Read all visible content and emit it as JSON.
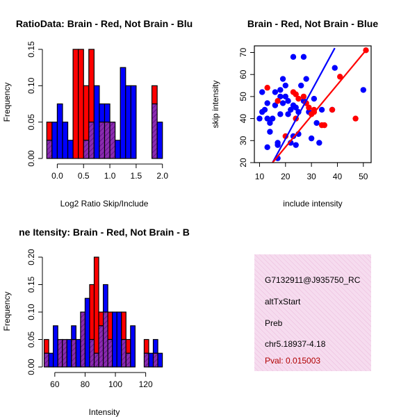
{
  "chart_data": [
    {
      "type": "bar",
      "subtype": "overlaid-histogram",
      "title": "RatioData: Brain - Red, Not Brain - Blu",
      "xlabel": "Log2 Ratio Skip/Include",
      "ylabel": "Frequency",
      "xlim": [
        -0.25,
        2.05
      ],
      "ylim": [
        0,
        0.15
      ],
      "xticks": [
        0.0,
        0.5,
        1.0,
        1.5,
        2.0
      ],
      "xtick_labels": [
        "0.0",
        "0.5",
        "1.0",
        "1.5",
        "2.0"
      ],
      "yticks": [
        0.0,
        0.05,
        0.1,
        0.15
      ],
      "ytick_labels": [
        "0.00",
        "0.05",
        "0.10",
        "0.15"
      ],
      "bin_width": 0.1,
      "series": [
        {
          "name": "Brain",
          "color": "#ff0000",
          "bins": [
            [
              -0.2,
              0.05
            ],
            [
              0.3,
              0.15
            ],
            [
              0.4,
              0.15
            ],
            [
              0.5,
              0.1
            ],
            [
              0.6,
              0.15
            ],
            [
              0.8,
              0.05
            ],
            [
              0.9,
              0.05
            ],
            [
              1.0,
              0.05
            ],
            [
              1.8,
              0.1
            ]
          ]
        },
        {
          "name": "Not Brain",
          "color": "#0000ff",
          "bins": [
            [
              -0.2,
              0.025
            ],
            [
              -0.1,
              0.05
            ],
            [
              0.0,
              0.075
            ],
            [
              0.1,
              0.05
            ],
            [
              0.2,
              0.025
            ],
            [
              0.5,
              0.025
            ],
            [
              0.6,
              0.05
            ],
            [
              0.7,
              0.1
            ],
            [
              0.8,
              0.075
            ],
            [
              0.9,
              0.075
            ],
            [
              1.0,
              0.05
            ],
            [
              1.1,
              0.025
            ],
            [
              1.2,
              0.125
            ],
            [
              1.3,
              0.1
            ],
            [
              1.4,
              0.1
            ],
            [
              1.8,
              0.075
            ],
            [
              1.9,
              0.05
            ]
          ]
        }
      ]
    },
    {
      "type": "scatter",
      "title": "Brain - Red, Not Brain - Blue",
      "xlabel": "include intensity",
      "ylabel": "skip intensity",
      "xlim": [
        8,
        53
      ],
      "ylim": [
        20,
        73
      ],
      "xticks": [
        10,
        20,
        30,
        40,
        50
      ],
      "xtick_labels": [
        "10",
        "20",
        "30",
        "40",
        "50"
      ],
      "yticks": [
        20,
        30,
        40,
        50,
        60,
        70
      ],
      "ytick_labels": [
        "20",
        "30",
        "40",
        "50",
        "60",
        "70"
      ],
      "series": [
        {
          "name": "Brain",
          "color": "#ff0000",
          "x": [
            51,
            41,
            38,
            34,
            30,
            31,
            29,
            27,
            24,
            17,
            13,
            20,
            24,
            31,
            35,
            47,
            28,
            25,
            23
          ],
          "y": [
            71,
            59,
            44,
            37,
            42,
            44,
            45,
            50,
            51,
            48,
            54,
            32,
            40,
            43,
            37,
            40,
            47,
            49,
            52
          ],
          "fit": {
            "x": [
              15,
              51
            ],
            "y": [
              20,
              71
            ]
          }
        },
        {
          "name": "Not Brain",
          "color": "#0000ff",
          "x": [
            10,
            11,
            12,
            13,
            13,
            14,
            14,
            15,
            16,
            16,
            17,
            17,
            18,
            18,
            18,
            19,
            19,
            20,
            20,
            21,
            21,
            22,
            22,
            23,
            23,
            24,
            24,
            25,
            25,
            26,
            27,
            28,
            29,
            30,
            31,
            32,
            33,
            34,
            38,
            39,
            50,
            27,
            24,
            13,
            17,
            23,
            11
          ],
          "y": [
            40,
            43,
            44,
            40,
            47,
            38,
            34,
            40,
            46,
            52,
            22,
            29,
            42,
            50,
            53,
            47,
            58,
            50,
            55,
            48,
            42,
            29,
            44,
            46,
            68,
            45,
            40,
            43,
            33,
            55,
            68,
            58,
            43,
            31,
            49,
            38,
            29,
            44,
            44,
            63,
            53,
            48,
            28,
            27,
            28,
            32,
            52
          ],
          "fit": {
            "x": [
              15,
              39
            ],
            "y": [
              20,
              72
            ]
          }
        }
      ]
    },
    {
      "type": "bar",
      "subtype": "overlaid-histogram",
      "title": "ne Itensity: Brain - Red, Not Brain - B",
      "xlabel": "Intensity",
      "ylabel": "Frequency",
      "xlim": [
        52,
        131
      ],
      "ylim": [
        0,
        0.2
      ],
      "xticks": [
        60,
        80,
        100,
        120
      ],
      "xtick_labels": [
        "60",
        "80",
        "100",
        "120"
      ],
      "yticks": [
        0.0,
        0.05,
        0.1,
        0.15,
        0.2
      ],
      "ytick_labels": [
        "0.00",
        "0.05",
        "0.10",
        "0.15",
        "0.20"
      ],
      "bin_width": 3,
      "series": [
        {
          "name": "Brain",
          "color": "#ff0000",
          "bins": [
            [
              53,
              0.05
            ],
            [
              62,
              0.05
            ],
            [
              65,
              0.05
            ],
            [
              71,
              0.05
            ],
            [
              77,
              0.1
            ],
            [
              83,
              0.15
            ],
            [
              86,
              0.2
            ],
            [
              89,
              0.1
            ],
            [
              92,
              0.1
            ],
            [
              95,
              0.1
            ],
            [
              104,
              0.1
            ],
            [
              107,
              0.05
            ],
            [
              119,
              0.05
            ],
            [
              125,
              0.025
            ]
          ]
        },
        {
          "name": "Not Brain",
          "color": "#0000ff",
          "bins": [
            [
              53,
              0.025
            ],
            [
              56,
              0.025
            ],
            [
              59,
              0.075
            ],
            [
              62,
              0.05
            ],
            [
              65,
              0.05
            ],
            [
              68,
              0.05
            ],
            [
              71,
              0.075
            ],
            [
              74,
              0.05
            ],
            [
              77,
              0.1
            ],
            [
              80,
              0.125
            ],
            [
              83,
              0.05
            ],
            [
              86,
              0.025
            ],
            [
              89,
              0.075
            ],
            [
              92,
              0.15
            ],
            [
              95,
              0.05
            ],
            [
              98,
              0.1
            ],
            [
              101,
              0.1
            ],
            [
              104,
              0.05
            ],
            [
              107,
              0.025
            ],
            [
              110,
              0.075
            ],
            [
              119,
              0.025
            ],
            [
              122,
              0.025
            ],
            [
              125,
              0.05
            ],
            [
              128,
              0.025
            ]
          ]
        }
      ]
    }
  ],
  "info_panel": {
    "event_id": "G7132911@J935750_RC",
    "event_type": "altTxStart",
    "gene": "Preb",
    "location": "chr5.18937-4.18",
    "pval": "Pval: 0.015003",
    "background_color": "#f6dcef",
    "hatch_color": "#ebb8db",
    "pval_color": "#b00000"
  }
}
